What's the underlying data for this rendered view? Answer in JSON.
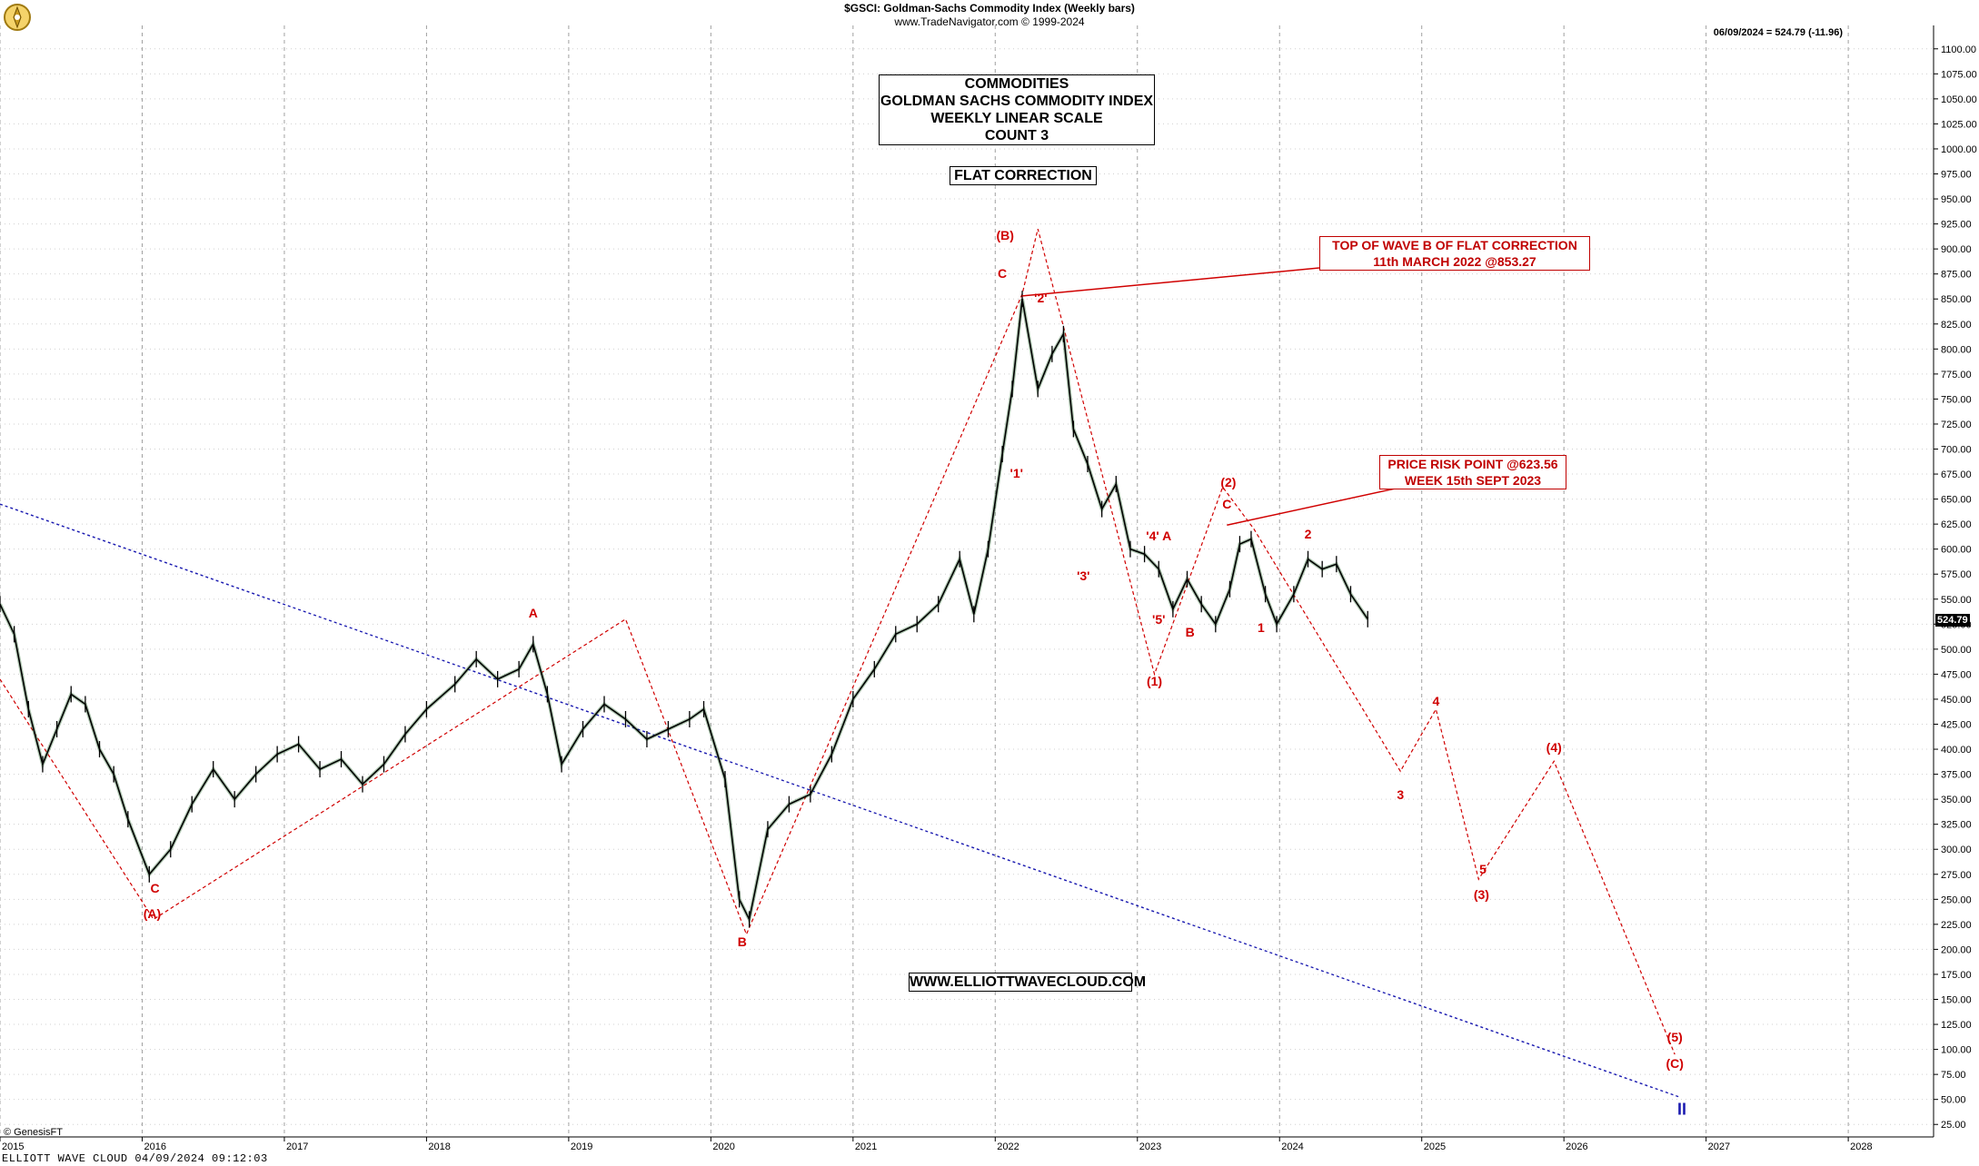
{
  "header": {
    "title": "$GSCI:  Goldman-Sachs Commodity Index  (Weekly bars)",
    "subtitle": "www.TradeNavigator.com © 1999-2024",
    "last_price": "06/09/2024 = 524.79 (-11.96)"
  },
  "title_box": [
    "COMMODITIES",
    "GOLDMAN SACHS COMMODITY INDEX",
    "WEEKLY LINEAR SCALE",
    "COUNT 3"
  ],
  "flat_box": "FLAT CORRECTION",
  "website_box": "WWW.ELLIOTTWAVECLOUD.COM",
  "note_b": [
    "TOP OF WAVE B OF FLAT CORRECTION",
    "11th MARCH 2022 @853.27"
  ],
  "note_risk": [
    "PRICE RISK POINT @623.56",
    "WEEK 15th SEPT 2023"
  ],
  "price_tag": "524.79",
  "footer": "ELLIOTT WAVE CLOUD   04/09/2024 09:12:03",
  "genesis": "© GenesisFT",
  "colors": {
    "wave": "#d00000",
    "trend": "#1a1ab0",
    "bars": "#000000",
    "grid": "#a0a0a0"
  },
  "chart_data": {
    "type": "line",
    "title": "$GSCI:  Goldman-Sachs Commodity Index  (Weekly bars)",
    "xlabel": "",
    "ylabel": "",
    "xlim": [
      2015.0,
      2028.6
    ],
    "ylim": [
      12.5,
      1112.5
    ],
    "y_ticks": [
      25,
      50,
      75,
      100,
      125,
      150,
      175,
      200,
      225,
      250,
      275,
      300,
      325,
      350,
      375,
      400,
      425,
      450,
      475,
      500,
      525,
      550,
      575,
      600,
      625,
      650,
      675,
      700,
      725,
      750,
      775,
      800,
      825,
      850,
      875,
      900,
      925,
      950,
      975,
      1000,
      1025,
      1050,
      1075,
      1100
    ],
    "x_ticks": [
      "2015",
      "2016",
      "2017",
      "2018",
      "2019",
      "2020",
      "2021",
      "2022",
      "2023",
      "2024",
      "2025",
      "2026",
      "2027",
      "2028"
    ],
    "grid": true,
    "series": [
      {
        "points": [
          [
            2015.0,
            545
          ],
          [
            2015.1,
            515
          ],
          [
            2015.2,
            440
          ],
          [
            2015.3,
            385
          ],
          [
            2015.4,
            420
          ],
          [
            2015.5,
            455
          ],
          [
            2015.6,
            445
          ],
          [
            2015.7,
            400
          ],
          [
            2015.8,
            375
          ],
          [
            2015.9,
            330
          ],
          [
            2016.05,
            275
          ],
          [
            2016.2,
            300
          ],
          [
            2016.35,
            345
          ],
          [
            2016.5,
            380
          ],
          [
            2016.65,
            350
          ],
          [
            2016.8,
            375
          ],
          [
            2016.95,
            395
          ],
          [
            2017.1,
            405
          ],
          [
            2017.25,
            380
          ],
          [
            2017.4,
            390
          ],
          [
            2017.55,
            365
          ],
          [
            2017.7,
            385
          ],
          [
            2017.85,
            415
          ],
          [
            2018.0,
            440
          ],
          [
            2018.2,
            465
          ],
          [
            2018.35,
            490
          ],
          [
            2018.5,
            470
          ],
          [
            2018.65,
            480
          ],
          [
            2018.75,
            505
          ],
          [
            2018.85,
            455
          ],
          [
            2018.95,
            385
          ],
          [
            2019.1,
            420
          ],
          [
            2019.25,
            445
          ],
          [
            2019.4,
            430
          ],
          [
            2019.55,
            410
          ],
          [
            2019.7,
            420
          ],
          [
            2019.85,
            430
          ],
          [
            2019.95,
            440
          ],
          [
            2020.1,
            370
          ],
          [
            2020.2,
            250
          ],
          [
            2020.27,
            230
          ],
          [
            2020.4,
            320
          ],
          [
            2020.55,
            345
          ],
          [
            2020.7,
            355
          ],
          [
            2020.85,
            395
          ],
          [
            2021.0,
            450
          ],
          [
            2021.15,
            480
          ],
          [
            2021.3,
            515
          ],
          [
            2021.45,
            525
          ],
          [
            2021.6,
            545
          ],
          [
            2021.75,
            590
          ],
          [
            2021.85,
            535
          ],
          [
            2021.95,
            600
          ],
          [
            2022.05,
            695
          ],
          [
            2022.12,
            760
          ],
          [
            2022.19,
            850
          ],
          [
            2022.3,
            760
          ],
          [
            2022.4,
            795
          ],
          [
            2022.48,
            815
          ],
          [
            2022.55,
            720
          ],
          [
            2022.65,
            685
          ],
          [
            2022.75,
            640
          ],
          [
            2022.85,
            665
          ],
          [
            2022.95,
            600
          ],
          [
            2023.05,
            595
          ],
          [
            2023.15,
            580
          ],
          [
            2023.25,
            540
          ],
          [
            2023.35,
            570
          ],
          [
            2023.45,
            545
          ],
          [
            2023.55,
            525
          ],
          [
            2023.65,
            560
          ],
          [
            2023.72,
            605
          ],
          [
            2023.8,
            610
          ],
          [
            2023.9,
            555
          ],
          [
            2023.98,
            525
          ],
          [
            2024.1,
            555
          ],
          [
            2024.2,
            590
          ],
          [
            2024.3,
            580
          ],
          [
            2024.4,
            585
          ],
          [
            2024.5,
            555
          ],
          [
            2024.62,
            530
          ]
        ]
      }
    ],
    "wave_path": [
      [
        2015.0,
        470
      ],
      [
        2016.08,
        230
      ],
      [
        2019.4,
        530
      ],
      [
        2020.25,
        215
      ],
      [
        2022.19,
        855
      ],
      [
        2022.3,
        920
      ],
      [
        2023.12,
        475
      ],
      [
        2023.6,
        662
      ],
      [
        2023.82,
        620
      ],
      [
        2024.85,
        378
      ],
      [
        2025.1,
        440
      ],
      [
        2025.4,
        270
      ],
      [
        2025.93,
        388
      ],
      [
        2026.78,
        95
      ]
    ],
    "trendline": [
      [
        2015.0,
        645
      ],
      [
        2026.82,
        52
      ]
    ],
    "wave_labels": [
      {
        "text": "(A)",
        "x": 2016.07,
        "y": 236
      },
      {
        "text": "C",
        "x": 2016.09,
        "y": 261
      },
      {
        "text": "A",
        "x": 2018.75,
        "y": 536
      },
      {
        "text": "B",
        "x": 2020.22,
        "y": 208
      },
      {
        "text": "(B)",
        "x": 2022.07,
        "y": 914
      },
      {
        "text": "C",
        "x": 2022.05,
        "y": 876
      },
      {
        "text": "'2'",
        "x": 2022.32,
        "y": 851
      },
      {
        "text": "'1'",
        "x": 2022.15,
        "y": 676
      },
      {
        "text": "'3'",
        "x": 2022.62,
        "y": 573
      },
      {
        "text": "'4' A",
        "x": 2023.15,
        "y": 613
      },
      {
        "text": "'5'",
        "x": 2023.15,
        "y": 530
      },
      {
        "text": "B",
        "x": 2023.37,
        "y": 517
      },
      {
        "text": "(1)",
        "x": 2023.12,
        "y": 468
      },
      {
        "text": "(2)",
        "x": 2023.64,
        "y": 667
      },
      {
        "text": "C",
        "x": 2023.63,
        "y": 645
      },
      {
        "text": "1",
        "x": 2023.87,
        "y": 522
      },
      {
        "text": "2",
        "x": 2024.2,
        "y": 615
      },
      {
        "text": "3",
        "x": 2024.85,
        "y": 355
      },
      {
        "text": "4",
        "x": 2025.1,
        "y": 448
      },
      {
        "text": "5",
        "x": 2025.43,
        "y": 280
      },
      {
        "text": "(3)",
        "x": 2025.42,
        "y": 255
      },
      {
        "text": "(4)",
        "x": 2025.93,
        "y": 402
      },
      {
        "text": "(5)",
        "x": 2026.78,
        "y": 112
      },
      {
        "text": "(C)",
        "x": 2026.78,
        "y": 86
      },
      {
        "text": "II",
        "x": 2026.83,
        "y": 40,
        "blue": true
      }
    ]
  }
}
